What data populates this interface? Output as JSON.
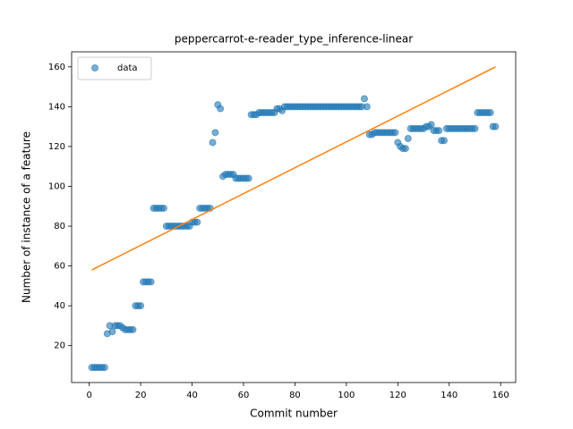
{
  "chart_data": {
    "type": "scatter",
    "title": "peppercarrot-e-reader_type_inference-linear",
    "x_label": "Commit number",
    "y_label": "Number of instance of a feature",
    "legend": "upper left",
    "series": [
      {
        "name": "data",
        "color": "#1f77b4",
        "x": [
          1,
          2,
          3,
          4,
          5,
          6,
          7,
          8,
          9,
          10,
          11,
          12,
          13,
          14,
          15,
          16,
          17,
          18,
          19,
          20,
          21,
          22,
          23,
          24,
          25,
          26,
          27,
          28,
          29,
          30,
          31,
          32,
          33,
          34,
          35,
          36,
          37,
          38,
          39,
          40,
          41,
          42,
          43,
          44,
          45,
          46,
          47,
          48,
          49,
          50,
          51,
          52,
          53,
          54,
          55,
          56,
          57,
          58,
          59,
          60,
          61,
          62,
          63,
          64,
          65,
          66,
          67,
          68,
          69,
          70,
          71,
          72,
          73,
          74,
          75,
          76,
          77,
          78,
          79,
          80,
          81,
          82,
          83,
          84,
          85,
          86,
          87,
          88,
          89,
          90,
          91,
          92,
          93,
          94,
          95,
          96,
          97,
          98,
          99,
          100,
          101,
          102,
          103,
          104,
          105,
          106,
          107,
          108,
          109,
          110,
          111,
          112,
          113,
          114,
          115,
          116,
          117,
          118,
          119,
          120,
          121,
          122,
          123,
          124,
          125,
          126,
          127,
          128,
          129,
          130,
          131,
          132,
          133,
          134,
          135,
          136,
          137,
          138,
          139,
          140,
          141,
          142,
          143,
          144,
          145,
          146,
          147,
          148,
          149,
          150,
          151,
          152,
          153,
          154,
          155,
          156,
          157,
          158
        ],
        "values": [
          9,
          9,
          9,
          9,
          9,
          9,
          26,
          30,
          27,
          30,
          30,
          30,
          29,
          28,
          28,
          28,
          28,
          40,
          40,
          40,
          52,
          52,
          52,
          52,
          89,
          89,
          89,
          89,
          89,
          80,
          80,
          80,
          80,
          80,
          80,
          80,
          80,
          80,
          80,
          82,
          82,
          82,
          89,
          89,
          89,
          89,
          89,
          122,
          127,
          141,
          139,
          105,
          106,
          106,
          106,
          106,
          104,
          104,
          104,
          104,
          104,
          104,
          136,
          136,
          136,
          137,
          137,
          137,
          137,
          137,
          137,
          137,
          139,
          139,
          138,
          140,
          140,
          140,
          140,
          140,
          140,
          140,
          140,
          140,
          140,
          140,
          140,
          140,
          140,
          140,
          140,
          140,
          140,
          140,
          140,
          140,
          140,
          140,
          140,
          140,
          140,
          140,
          140,
          140,
          140,
          140,
          144,
          140,
          126,
          126,
          127,
          127,
          127,
          127,
          127,
          127,
          127,
          127,
          127,
          122,
          120,
          119,
          119,
          124,
          129,
          129,
          129,
          129,
          129,
          129,
          130,
          130,
          131,
          128,
          128,
          128,
          123,
          123,
          129,
          129,
          129,
          129,
          129,
          129,
          129,
          129,
          129,
          129,
          129,
          129,
          137,
          137,
          137,
          137,
          137,
          137,
          130,
          130
        ]
      }
    ],
    "fit_line": {
      "color": "#ff7f0e",
      "x": [
        1,
        158
      ],
      "values": [
        58,
        160
      ]
    },
    "xlim": [
      -6.85,
      165.85
    ],
    "xticks": [
      0,
      20,
      40,
      60,
      80,
      100,
      120,
      140,
      160
    ],
    "ylim": [
      1.45,
      167.55
    ],
    "yticks": [
      20,
      40,
      60,
      80,
      100,
      120,
      140,
      160
    ]
  }
}
